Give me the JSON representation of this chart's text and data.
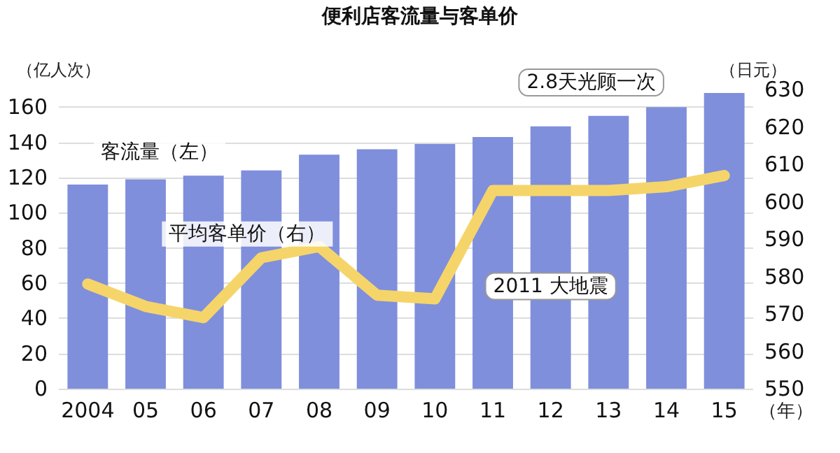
{
  "chart_data": {
    "type": "bar",
    "title": "便利店客流量与客单价",
    "xlabel": "（年）",
    "ylabel": "（亿人次）",
    "y2label": "（日元）",
    "categories": [
      "2004",
      "05",
      "06",
      "07",
      "08",
      "09",
      "10",
      "11",
      "12",
      "13",
      "14",
      "15"
    ],
    "series": [
      {
        "name": "客流量（左）",
        "color": "#7f8fdc",
        "values": [
          116,
          119,
          121,
          124,
          133,
          136,
          139,
          143,
          149,
          155,
          160,
          168
        ]
      },
      {
        "name": "平均客单价（右）",
        "type": "line",
        "axis": "y2",
        "color": "#f5d56a",
        "values": [
          578,
          572,
          569,
          585,
          588,
          575,
          574,
          603,
          603,
          603,
          604,
          607
        ]
      }
    ],
    "ylim": [
      0,
      170
    ],
    "yticks": [
      0,
      20,
      40,
      60,
      80,
      100,
      120,
      140,
      160
    ],
    "y2lim": [
      550,
      630
    ],
    "y2ticks": [
      550,
      560,
      570,
      580,
      590,
      600,
      610,
      620,
      630
    ],
    "grid": "y",
    "legend": false,
    "marker": "none",
    "line_style": "solid",
    "annotations": [
      "2.8天光顾一次",
      "2011 大地震"
    ]
  }
}
